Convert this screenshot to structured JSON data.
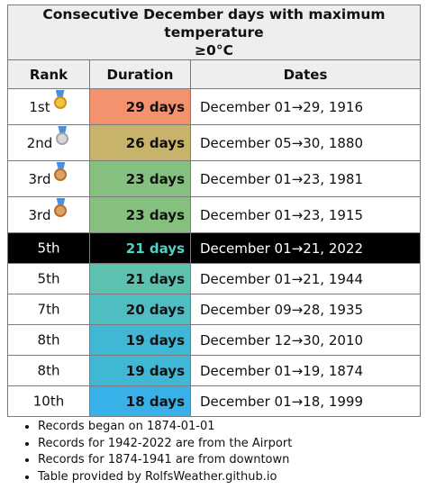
{
  "table": {
    "title_line1": "Consecutive December days with maximum temperature",
    "title_line2": "≥0°C",
    "headers": {
      "rank": "Rank",
      "duration": "Duration",
      "dates": "Dates"
    },
    "rows": [
      {
        "rank": "1st",
        "medal": "gold-medal-icon",
        "duration": "29 days",
        "dates": "December 01→29, 1916",
        "color": "#f4926d"
      },
      {
        "rank": "2nd",
        "medal": "silver-medal-icon",
        "duration": "26 days",
        "dates": "December 05→30, 1880",
        "color": "#c7b46a"
      },
      {
        "rank": "3rd",
        "medal": "bronze-medal-icon",
        "duration": "23 days",
        "dates": "December 01→23, 1981",
        "color": "#86c07e"
      },
      {
        "rank": "3rd",
        "medal": "bronze-medal-icon",
        "duration": "23 days",
        "dates": "December 01→23, 1915",
        "color": "#86c07e"
      },
      {
        "rank": "5th",
        "medal": "",
        "duration": "21 days",
        "dates": "December 01→21, 2022",
        "color": "#000000",
        "highlighted": true
      },
      {
        "rank": "5th",
        "medal": "",
        "duration": "21 days",
        "dates": "December 01→21, 1944",
        "color": "#5cc1ae"
      },
      {
        "rank": "7th",
        "medal": "",
        "duration": "20 days",
        "dates": "December 09→28, 1935",
        "color": "#4fbec3"
      },
      {
        "rank": "8th",
        "medal": "",
        "duration": "19 days",
        "dates": "December 12→30, 2010",
        "color": "#3fb7d5"
      },
      {
        "rank": "8th",
        "medal": "",
        "duration": "19 days",
        "dates": "December 01→19, 1874",
        "color": "#3fb7d5"
      },
      {
        "rank": "10th",
        "medal": "",
        "duration": "18 days",
        "dates": "December 01→18, 1999",
        "color": "#38b1e8"
      }
    ]
  },
  "notes": [
    "Records began on 1874-01-01",
    "Records for 1942-2022 are from the Airport",
    "Records for 1874-1941 are from downtown",
    "Table provided by RolfsWeather.github.io"
  ]
}
